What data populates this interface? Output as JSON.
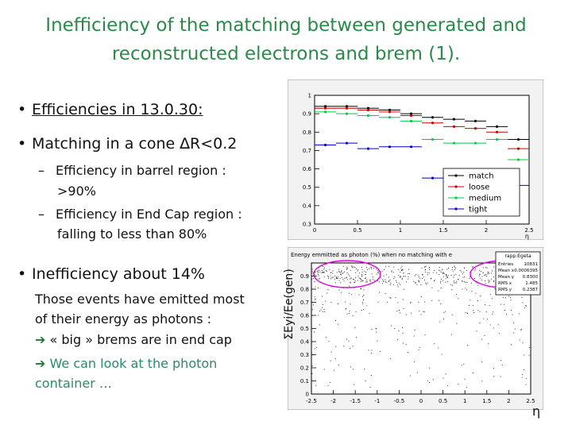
{
  "title": {
    "line1": "Inefficiency of the matching between generated and",
    "line2": "reconstructed electrons and brem (1)."
  },
  "bullets": {
    "b1": "Efficiencies in 13.0.30:",
    "b2": "Matching in a cone ∆R<0.2",
    "sub1a": "Efficiency in barrel region :",
    "sub1b": ">90%",
    "sub2a": "Efficiency in End Cap region :",
    "sub2b": "falling to less than 80%",
    "b3": "Inefficiency about 14%",
    "p1": "Those events have emitted most",
    "p2": "of their energy as photons :",
    "p3": "« big » brems are in end cap",
    "p4": "We can look at the photon",
    "p5": "container …",
    "arrow": "➔"
  },
  "plot2_ylabel": "ΣEyi/Ee(gen)",
  "plot2_xlabel": "η",
  "chart_data": [
    {
      "type": "scatter",
      "title": "",
      "xlabel": "η",
      "ylabel": "",
      "xlim": [
        0,
        2.5
      ],
      "ylim": [
        0.3,
        1.0
      ],
      "x_ticks": [
        "0",
        "0.5",
        "1",
        "1.5",
        "2",
        "2.5"
      ],
      "y_ticks": [
        "0.3",
        "0.4",
        "0.5",
        "0.6",
        "0.7",
        "0.8",
        "0.9",
        "1"
      ],
      "legend": [
        "match",
        "loose",
        "medium",
        "tight"
      ],
      "legend_position": "right",
      "colors": {
        "match": "#000000",
        "loose": "#cc0000",
        "medium": "#00cc44",
        "tight": "#0000cc"
      },
      "x": [
        0.125,
        0.375,
        0.625,
        0.875,
        1.125,
        1.375,
        1.625,
        1.875,
        2.125,
        2.375
      ],
      "series": [
        {
          "name": "match",
          "values": [
            0.94,
            0.94,
            0.93,
            0.92,
            0.9,
            0.88,
            0.87,
            0.86,
            0.83,
            0.76
          ]
        },
        {
          "name": "loose",
          "values": [
            0.93,
            0.93,
            0.92,
            0.91,
            0.89,
            0.85,
            0.83,
            0.82,
            0.8,
            0.71
          ]
        },
        {
          "name": "medium",
          "values": [
            0.91,
            0.9,
            0.89,
            0.88,
            0.86,
            0.76,
            0.74,
            0.74,
            0.76,
            0.65
          ]
        },
        {
          "name": "tight",
          "values": [
            0.73,
            0.74,
            0.71,
            0.72,
            0.72,
            0.55,
            0.48,
            0.53,
            0.52,
            0.51
          ]
        }
      ]
    },
    {
      "type": "scatter",
      "title": "Energy emmitted as photon (%) when no matching with e",
      "xlabel": "η",
      "ylabel": "ΣEyi/Ee(gen)",
      "xlim": [
        -2.5,
        2.5
      ],
      "ylim": [
        0,
        1
      ],
      "x_ticks": [
        "-2.5",
        "-2",
        "-1.5",
        "-1",
        "-0.5",
        "0",
        "0.5",
        "1",
        "1.5",
        "2",
        "2.5"
      ],
      "y_ticks": [
        "0",
        "0.1",
        "0.2",
        "0.3",
        "0.4",
        "0.5",
        "0.6",
        "0.7",
        "0.8",
        "0.9"
      ],
      "stats": {
        "name": "rapp:Egeta",
        "rows": [
          [
            "Entries",
            "10831"
          ],
          [
            "Mean x",
            "0.0006395"
          ],
          [
            "Mean y",
            "0.8300"
          ],
          [
            "RMS x",
            "1.485"
          ],
          [
            "RMS y",
            "0.2387"
          ]
        ]
      }
    }
  ]
}
